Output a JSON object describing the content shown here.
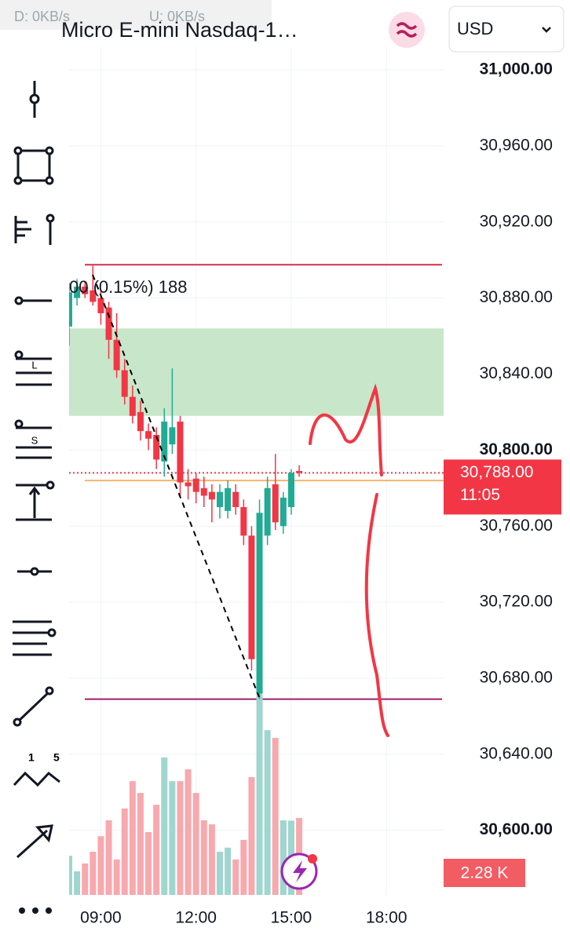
{
  "status": {
    "download": "D: 0KB/s",
    "upload": "U: 0KB/s"
  },
  "header": {
    "title": "Micro E-mini Nasdaq-1…",
    "currency": "USD"
  },
  "chart_data": {
    "type": "candlestick",
    "x": [
      8,
      8.25,
      8.5,
      8.75,
      9,
      9.25,
      9.5,
      9.75,
      10,
      10.25,
      10.5,
      10.75,
      11,
      11.25,
      11.5,
      11.75,
      12,
      12.25,
      12.5,
      12.75,
      13,
      13.25,
      13.5,
      13.75,
      14,
      14.25,
      14.5,
      14.75,
      15,
      15.25
    ],
    "open": [
      30865,
      30880,
      30886,
      30884,
      30880,
      30875,
      30858,
      30842,
      30828,
      30820,
      30810,
      30808,
      30794,
      30803,
      30815,
      30783,
      30785,
      30780,
      30778,
      30770,
      30768,
      30778,
      30770,
      30755,
      30672,
      30755,
      30782,
      30760,
      30770,
      30789
    ],
    "high": [
      30888,
      30890,
      30889,
      30897,
      30884,
      30878,
      30872,
      30848,
      30834,
      30826,
      30814,
      30812,
      30822,
      30843,
      30818,
      30790,
      30788,
      30786,
      30782,
      30782,
      30784,
      30782,
      30774,
      30760,
      30774,
      30786,
      30798,
      30778,
      30790,
      30792
    ],
    "low": [
      30855,
      30876,
      30880,
      30876,
      30866,
      30848,
      30838,
      30824,
      30814,
      30805,
      30800,
      30790,
      30786,
      30798,
      30776,
      30774,
      30772,
      30770,
      30762,
      30764,
      30764,
      30766,
      30750,
      30684,
      30669,
      30750,
      30758,
      30756,
      30766,
      30786
    ],
    "close": [
      30883,
      30886,
      30882,
      30878,
      30872,
      30858,
      30842,
      30828,
      30818,
      30810,
      30806,
      30795,
      30815,
      30812,
      30783,
      30781,
      30778,
      30776,
      30774,
      30778,
      30780,
      30770,
      30755,
      30690,
      30767,
      30780,
      30762,
      30775,
      30788,
      30788
    ],
    "volume": [
      1.16,
      0.7,
      0.93,
      1.28,
      1.74,
      2.21,
      1.05,
      2.56,
      3.37,
      3.02,
      1.86,
      2.67,
      4.07,
      3.37,
      3.37,
      3.72,
      3.02,
      2.21,
      2.09,
      1.28,
      1.4,
      1.05,
      1.63,
      3.49,
      6.0,
      4.88,
      4.65,
      2.21,
      2.2,
      2.28
    ],
    "up_color": "#22ab94",
    "down_color": "#f23645",
    "up_volume_color": "#9fd6cf",
    "down_volume_color": "#f7a9ae",
    "ylim": [
      30566,
      31012
    ],
    "yticks": [
      {
        "value": 31000,
        "label": "31,000.00"
      },
      {
        "value": 30960,
        "label": "30,960.00"
      },
      {
        "value": 30920,
        "label": "30,920.00"
      },
      {
        "value": 30880,
        "label": "30,880.00"
      },
      {
        "value": 30840,
        "label": "30,840.00"
      },
      {
        "value": 30800,
        "label": "30,800.00"
      },
      {
        "value": 30760,
        "label": "30,760.00"
      },
      {
        "value": 30720,
        "label": "30,720.00"
      },
      {
        "value": 30680,
        "label": "30,680.00"
      },
      {
        "value": 30640,
        "label": "30,640.00"
      },
      {
        "value": 30600,
        "label": "30,600.00"
      }
    ],
    "xlim": [
      8,
      19.8
    ],
    "xticks": [
      {
        "value": 9,
        "label": "09:00"
      },
      {
        "value": 12,
        "label": "12:00"
      },
      {
        "value": 15,
        "label": "15:00"
      },
      {
        "value": 18,
        "label": "18:00"
      }
    ],
    "grid": true,
    "measure_label": "00 (0.15%) 188",
    "high_line": 30897.5,
    "low_line": 30669,
    "zone": [
      30818,
      30864
    ],
    "orange_line": 30784,
    "last_price": 30788,
    "last_price_label": "30,788.00",
    "countdown": "11:05",
    "volume_label": "2.28 K"
  }
}
